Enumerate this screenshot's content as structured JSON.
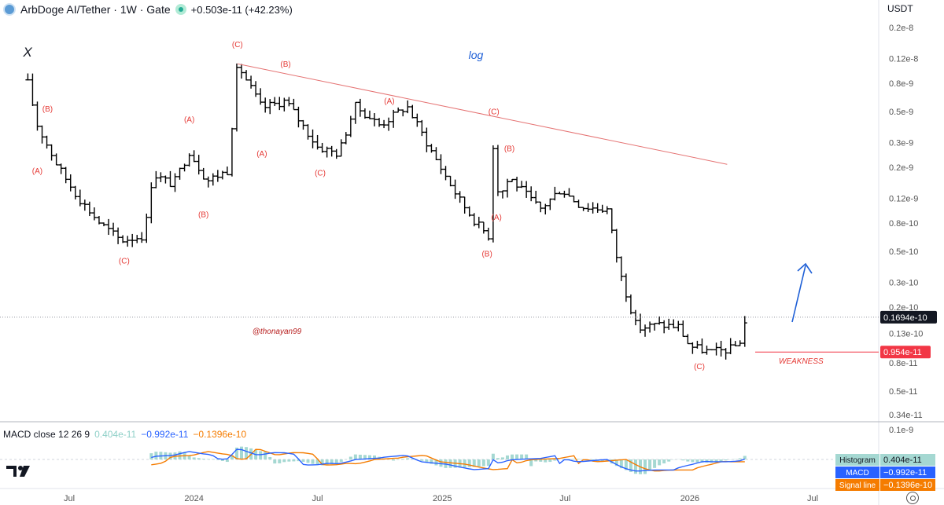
{
  "header": {
    "title": "ArbDoge AI/Tether · 1W · Gate",
    "change": "+0.503e-11 (+42.23%)"
  },
  "currency": "USDT",
  "macd_header": {
    "label": "MACD close 12 26 9",
    "histogram": "0.404e-11",
    "macd": "−0.992e-11",
    "signal": "−0.1396e-10"
  },
  "colors": {
    "candle": "#000000",
    "wave_label": "#e53935",
    "trendline": "#e57373",
    "annotation_blue": "#1e5fd6",
    "macd_line": "#2962ff",
    "signal_line": "#f57c00",
    "histogram": "#a5d8d2",
    "current_price_bg": "#131722",
    "support_bg": "#f23645"
  },
  "chart_data": {
    "type": "candlestick",
    "scale": "log",
    "price_axis": {
      "ticks": [
        "0.2e-8",
        "0.12e-8",
        "0.8e-9",
        "0.5e-9",
        "0.3e-9",
        "0.2e-9",
        "0.12e-9",
        "0.8e-10",
        "0.5e-10",
        "0.3e-10",
        "0.2e-10",
        "0.13e-10",
        "0.8e-11",
        "0.5e-11",
        "0.34e-11"
      ],
      "tick_values": [
        2e-09,
        1.2e-09,
        8e-10,
        5e-10,
        3e-10,
        2e-10,
        1.2e-10,
        8e-11,
        5e-11,
        3e-11,
        2e-11,
        1.3e-11,
        8e-12,
        5e-12,
        3.4e-12
      ]
    },
    "time_axis": {
      "labels": [
        "Jul",
        "2024",
        "Jul",
        "2025",
        "Jul",
        "2026",
        "Jul"
      ],
      "label_dates": [
        "2023-07-01",
        "2024-01-01",
        "2024-07-01",
        "2025-01-01",
        "2025-07-01",
        "2026-01-01",
        "2026-07-01"
      ]
    },
    "price_points": [
      {
        "date": "2023-05-01",
        "price": 8e-10
      },
      {
        "date": "2023-05-15",
        "price": 4e-10
      },
      {
        "date": "2023-06-15",
        "price": 2e-10
      },
      {
        "date": "2023-07-15",
        "price": 1.2e-10
      },
      {
        "date": "2023-08-15",
        "price": 8e-11
      },
      {
        "date": "2023-09-15",
        "price": 6e-11
      },
      {
        "date": "2023-10-20",
        "price": 6.5e-11
      },
      {
        "date": "2023-11-01",
        "price": 1.8e-10
      },
      {
        "date": "2023-12-01",
        "price": 1.5e-10
      },
      {
        "date": "2023-12-25",
        "price": 2.6e-10
      },
      {
        "date": "2024-01-20",
        "price": 1.6e-10
      },
      {
        "date": "2024-02-20",
        "price": 1.9e-10
      },
      {
        "date": "2024-03-05",
        "price": 1.1e-09
      },
      {
        "date": "2024-04-10",
        "price": 5.3e-10
      },
      {
        "date": "2024-05-15",
        "price": 6e-10
      },
      {
        "date": "2024-07-01",
        "price": 2.8e-10
      },
      {
        "date": "2024-08-01",
        "price": 2.5e-10
      },
      {
        "date": "2024-08-25",
        "price": 5.5e-10
      },
      {
        "date": "2024-10-01",
        "price": 4e-10
      },
      {
        "date": "2024-11-10",
        "price": 5.5e-10
      },
      {
        "date": "2024-12-20",
        "price": 2.4e-10
      },
      {
        "date": "2025-01-25",
        "price": 1.2e-10
      },
      {
        "date": "2025-02-20",
        "price": 8e-11
      },
      {
        "date": "2025-03-10",
        "price": 6.5e-11
      },
      {
        "date": "2025-03-18",
        "price": 3.5e-10
      },
      {
        "date": "2025-03-25",
        "price": 1.2e-10
      },
      {
        "date": "2025-04-10",
        "price": 1.7e-10
      },
      {
        "date": "2025-05-25",
        "price": 1e-10
      },
      {
        "date": "2025-06-25",
        "price": 1.4e-10
      },
      {
        "date": "2025-07-25",
        "price": 1.05e-10
      },
      {
        "date": "2025-09-01",
        "price": 1e-10
      },
      {
        "date": "2025-09-20",
        "price": 3.5e-11
      },
      {
        "date": "2025-10-15",
        "price": 1.4e-11
      },
      {
        "date": "2025-11-15",
        "price": 1.5e-11
      },
      {
        "date": "2025-12-15",
        "price": 1.45e-11
      },
      {
        "date": "2026-01-01",
        "price": 1.05e-11
      },
      {
        "date": "2026-02-01",
        "price": 9.5e-12
      },
      {
        "date": "2026-03-01",
        "price": 1e-11
      },
      {
        "date": "2026-03-15",
        "price": 1.1e-11
      },
      {
        "date": "2026-03-25",
        "price": 1.694e-11
      }
    ],
    "current_price": {
      "label": "0.1694e-10",
      "value": 1.694e-11
    },
    "support_level": {
      "label": "0.954e-11",
      "value": 9.54e-12,
      "text": "WEAKNESS"
    },
    "trendline": [
      {
        "date": "2024-03-05",
        "price": 1.1e-09
      },
      {
        "date": "2026-02-25",
        "price": 2.1e-10
      }
    ],
    "wave_labels": [
      {
        "text": "(A)",
        "date": "2023-05-15",
        "price": 1.8e-10
      },
      {
        "text": "(B)",
        "date": "2023-05-30",
        "price": 5e-10
      },
      {
        "text": "(C)",
        "date": "2023-09-20",
        "price": 4.1e-11
      },
      {
        "text": "(A)",
        "date": "2023-12-25",
        "price": 4.2e-10
      },
      {
        "text": "(B)",
        "date": "2024-01-15",
        "price": 8.8e-11
      },
      {
        "text": "(C)",
        "date": "2024-03-05",
        "price": 1.45e-09
      },
      {
        "text": "(A)",
        "date": "2024-04-10",
        "price": 2.4e-10
      },
      {
        "text": "(B)",
        "date": "2024-05-15",
        "price": 1.05e-09
      },
      {
        "text": "(C)",
        "date": "2024-07-05",
        "price": 1.75e-10
      },
      {
        "text": "(A)",
        "date": "2024-10-15",
        "price": 5.7e-10
      },
      {
        "text": "(C)",
        "date": "2025-03-18",
        "price": 4.8e-10
      },
      {
        "text": "(B)",
        "date": "2025-04-10",
        "price": 2.6e-10
      },
      {
        "text": "(A)",
        "date": "2025-03-22",
        "price": 8.4e-11
      },
      {
        "text": "(B)",
        "date": "2025-03-08",
        "price": 4.6e-11
      },
      {
        "text": "(C)",
        "date": "2026-01-15",
        "price": 7.2e-12
      }
    ],
    "annotations": [
      {
        "text": "log"
      },
      {
        "text": "X"
      },
      {
        "text": "@thonayan99"
      }
    ],
    "macd": {
      "histogram": 4.04e-12,
      "macd": -9.92e-12,
      "signal": -1.396e-11,
      "axis_tick": "0.1e-9",
      "legend": [
        {
          "name": "Histogram",
          "value": "0.404e-11"
        },
        {
          "name": "MACD",
          "value": "−0.992e-11"
        },
        {
          "name": "Signal line",
          "value": "−0.1396e-10"
        }
      ]
    }
  }
}
